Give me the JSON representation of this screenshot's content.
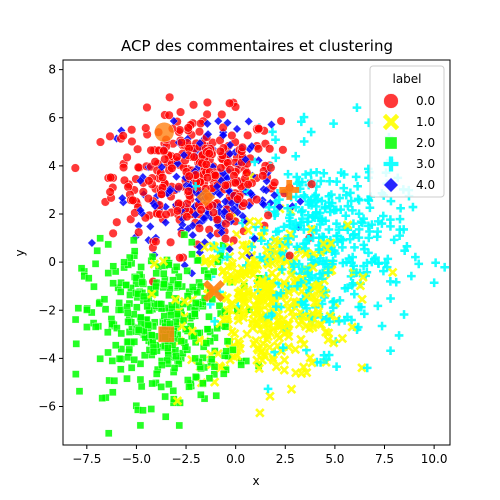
{
  "chart_data": {
    "type": "scatter",
    "title": "ACP des commentaires et clustering",
    "xlabel": "x",
    "ylabel": "y",
    "xlim": [
      -8.7,
      10.8
    ],
    "ylim": [
      -7.6,
      8.4
    ],
    "xticks": [
      -7.5,
      -5.0,
      -2.5,
      0.0,
      2.5,
      5.0,
      7.5,
      10.0
    ],
    "xtick_labels": [
      "−7.5",
      "−5.0",
      "−2.5",
      "0.0",
      "2.5",
      "5.0",
      "7.5",
      "10.0"
    ],
    "yticks": [
      -6,
      -4,
      -2,
      0,
      2,
      4,
      6,
      8
    ],
    "ytick_labels": [
      "−6",
      "−4",
      "−2",
      "0",
      "2",
      "4",
      "6",
      "8"
    ],
    "grid": false,
    "legend": {
      "title": "label",
      "placement": "top-right",
      "entries": [
        {
          "label": "0.0",
          "color": "#ff0000",
          "marker": "circle"
        },
        {
          "label": "1.0",
          "color": "#ffff00",
          "marker": "x"
        },
        {
          "label": "2.0",
          "color": "#00ff00",
          "marker": "square"
        },
        {
          "label": "3.0",
          "color": "#00ffff",
          "marker": "plus"
        },
        {
          "label": "4.0",
          "color": "#0000ff",
          "marker": "diamond"
        }
      ]
    },
    "series": [
      {
        "name": "0.0",
        "color": "#ff0000",
        "marker": "circle",
        "center": [
          -2.0,
          3.6
        ],
        "spread": [
          2.1,
          1.3
        ],
        "count": 360
      },
      {
        "name": "1.0",
        "color": "#ffff00",
        "marker": "x",
        "center": [
          1.6,
          -1.7
        ],
        "spread": [
          2.0,
          1.6
        ],
        "count": 360
      },
      {
        "name": "2.0",
        "color": "#00ff00",
        "marker": "square",
        "center": [
          -3.8,
          -2.6
        ],
        "spread": [
          1.9,
          1.6
        ],
        "count": 380
      },
      {
        "name": "3.0",
        "color": "#00ffff",
        "marker": "plus",
        "center": [
          4.3,
          0.6
        ],
        "spread": [
          2.1,
          2.0
        ],
        "count": 400
      },
      {
        "name": "4.0",
        "color": "#0000ff",
        "marker": "diamond",
        "center": [
          -1.6,
          2.9
        ],
        "spread": [
          1.7,
          1.4
        ],
        "count": 180
      }
    ],
    "centroids": {
      "color": "#ff7f0e",
      "points": [
        {
          "marker": "circle",
          "x": -3.6,
          "y": 5.4
        },
        {
          "marker": "x",
          "x": -1.1,
          "y": -1.2
        },
        {
          "marker": "square",
          "x": -3.5,
          "y": -3.0
        },
        {
          "marker": "plus",
          "x": 2.7,
          "y": 3.0
        },
        {
          "marker": "diamond",
          "x": -1.5,
          "y": 2.7
        }
      ]
    }
  }
}
